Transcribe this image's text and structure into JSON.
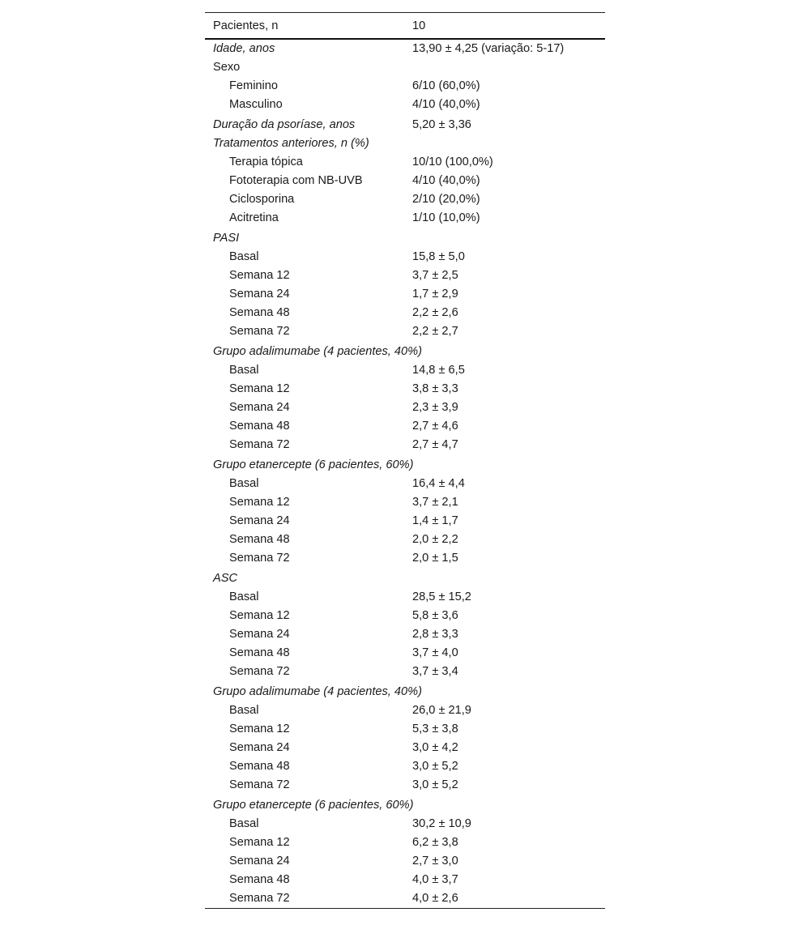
{
  "table": {
    "header": {
      "label": "Pacientes, n",
      "value": "10"
    },
    "rows": [
      {
        "label": "Idade, anos",
        "value": "13,90 ± 4,25 (variação: 5-17)",
        "style": "italic"
      },
      {
        "label": "Sexo",
        "value": "",
        "style": "normal"
      },
      {
        "label": "Feminino",
        "value": "6/10 (60,0%)",
        "style": "indent"
      },
      {
        "label": "Masculino",
        "value": "4/10 (40,0%)",
        "style": "indent"
      },
      {
        "label": "Duração da psoríase, anos",
        "value": "5,20 ± 3,36",
        "style": "italic",
        "gap": true
      },
      {
        "label": "Tratamentos anteriores, n (%)",
        "value": "",
        "style": "italic"
      },
      {
        "label": "Terapia tópica",
        "value": "10/10 (100,0%)",
        "style": "indent"
      },
      {
        "label": "Fototerapia com NB-UVB",
        "value": "4/10 (40,0%)",
        "style": "indent"
      },
      {
        "label": "Ciclosporina",
        "value": "2/10 (20,0%)",
        "style": "indent"
      },
      {
        "label": "Acitretina",
        "value": "1/10 (10,0%)",
        "style": "indent"
      },
      {
        "label": "PASI",
        "value": "",
        "style": "italic",
        "gap": true
      },
      {
        "label": "Basal",
        "value": "15,8 ± 5,0",
        "style": "indent"
      },
      {
        "label": "Semana 12",
        "value": "3,7 ± 2,5",
        "style": "indent"
      },
      {
        "label": "Semana 24",
        "value": "1,7 ± 2,9",
        "style": "indent"
      },
      {
        "label": "Semana 48",
        "value": "2,2 ± 2,6",
        "style": "indent"
      },
      {
        "label": "Semana 72",
        "value": "2,2 ± 2,7",
        "style": "indent"
      },
      {
        "label": "Grupo adalimumabe (4 pacientes, 40%)",
        "value": "",
        "style": "italic",
        "gap": true
      },
      {
        "label": "Basal",
        "value": "14,8 ± 6,5",
        "style": "indent"
      },
      {
        "label": "Semana 12",
        "value": "3,8 ± 3,3",
        "style": "indent"
      },
      {
        "label": "Semana 24",
        "value": "2,3 ± 3,9",
        "style": "indent"
      },
      {
        "label": "Semana 48",
        "value": "2,7 ± 4,6",
        "style": "indent"
      },
      {
        "label": "Semana 72",
        "value": "2,7 ± 4,7",
        "style": "indent"
      },
      {
        "label": "Grupo etanercepte (6 pacientes, 60%)",
        "value": "",
        "style": "italic",
        "gap": true
      },
      {
        "label": "Basal",
        "value": "16,4 ± 4,4",
        "style": "indent"
      },
      {
        "label": "Semana 12",
        "value": "3,7 ± 2,1",
        "style": "indent"
      },
      {
        "label": "Semana 24",
        "value": "1,4 ± 1,7",
        "style": "indent"
      },
      {
        "label": "Semana 48",
        "value": "2,0 ± 2,2",
        "style": "indent"
      },
      {
        "label": "Semana 72",
        "value": "2,0 ± 1,5",
        "style": "indent"
      },
      {
        "label": "ASC",
        "value": "",
        "style": "italic",
        "gap": true
      },
      {
        "label": "Basal",
        "value": "28,5 ± 15,2",
        "style": "indent"
      },
      {
        "label": "Semana 12",
        "value": "5,8 ± 3,6",
        "style": "indent"
      },
      {
        "label": "Semana 24",
        "value": "2,8 ± 3,3",
        "style": "indent"
      },
      {
        "label": "Semana 48",
        "value": "3,7 ± 4,0",
        "style": "indent"
      },
      {
        "label": "Semana 72",
        "value": "3,7 ± 3,4",
        "style": "indent"
      },
      {
        "label": "Grupo adalimumabe (4 pacientes, 40%)",
        "value": "",
        "style": "italic",
        "gap": true
      },
      {
        "label": "Basal",
        "value": "26,0 ± 21,9",
        "style": "indent"
      },
      {
        "label": "Semana 12",
        "value": "5,3 ± 3,8",
        "style": "indent"
      },
      {
        "label": "Semana 24",
        "value": "3,0 ± 4,2",
        "style": "indent"
      },
      {
        "label": "Semana 48",
        "value": "3,0 ± 5,2",
        "style": "indent"
      },
      {
        "label": "Semana 72",
        "value": "3,0 ± 5,2",
        "style": "indent"
      },
      {
        "label": "Grupo etanercepte (6 pacientes, 60%)",
        "value": "",
        "style": "italic",
        "gap": true
      },
      {
        "label": "Basal",
        "value": "30,2 ± 10,9",
        "style": "indent"
      },
      {
        "label": "Semana 12",
        "value": "6,2 ± 3,8",
        "style": "indent"
      },
      {
        "label": "Semana 24",
        "value": "2,7 ± 3,0",
        "style": "indent"
      },
      {
        "label": "Semana 48",
        "value": "4,0 ± 3,7",
        "style": "indent"
      },
      {
        "label": "Semana 72",
        "value": "4,0 ± 2,6",
        "style": "indent"
      }
    ]
  }
}
